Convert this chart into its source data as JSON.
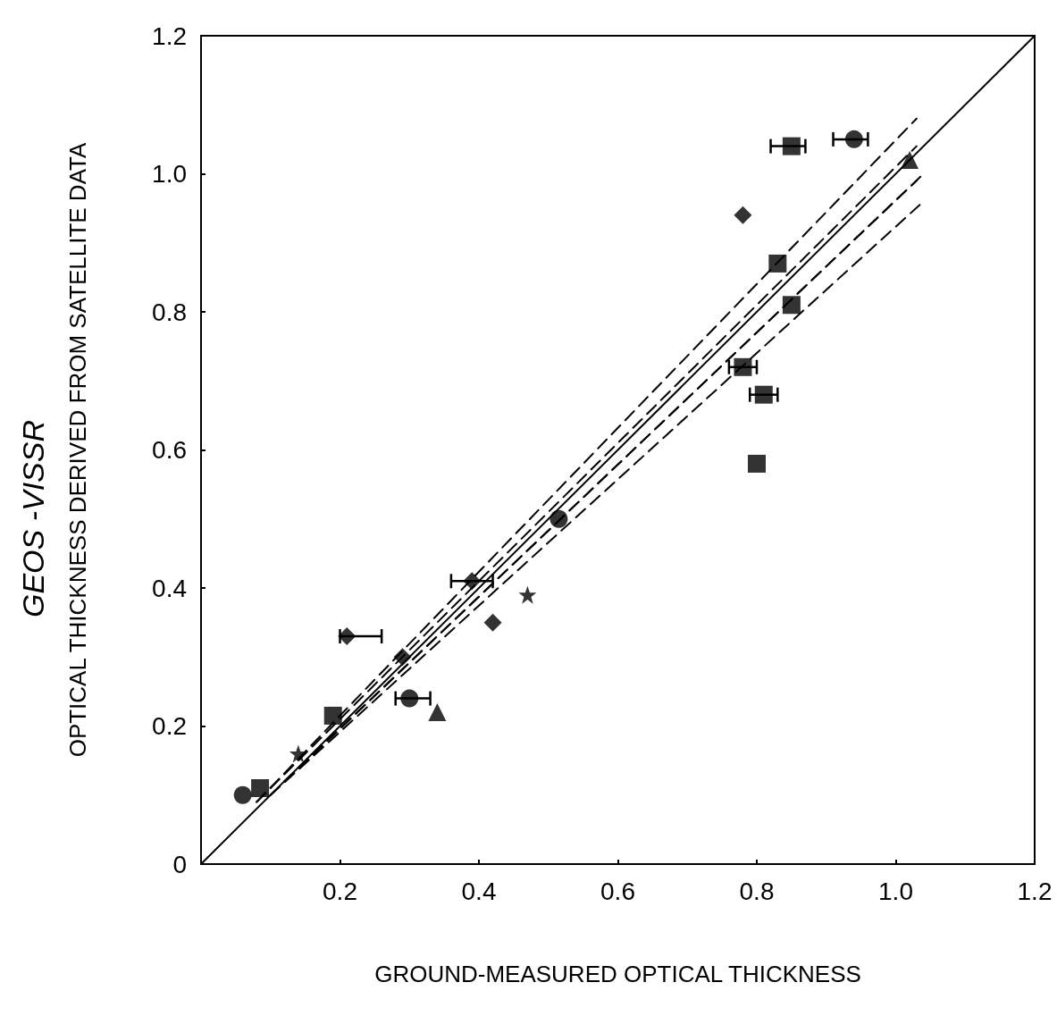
{
  "chart_data": {
    "type": "scatter",
    "xlabel": "GROUND-MEASURED OPTICAL THICKNESS",
    "ylabel": "OPTICAL THICKNESS DERIVED FROM SATELLITE DATA",
    "annotations": [
      "GEOS -VISSR"
    ],
    "xlim": [
      0,
      1.2
    ],
    "ylim": [
      0,
      1.2
    ],
    "xticks": [
      {
        "value": 0,
        "label": null
      },
      0.2,
      0.4,
      0.6,
      0.8,
      {
        "value": 1,
        "label": "1.0"
      },
      1.2
    ],
    "yticks": [
      0,
      0.2,
      0.4,
      0.6,
      0.8,
      {
        "value": 1,
        "label": "1.0"
      },
      1.2
    ],
    "grid": false,
    "series": [
      {
        "type": "line",
        "color": "#000000",
        "line_style": "solid",
        "marker": "none",
        "x": [
          0,
          1.2
        ],
        "values": [
          0,
          1.2
        ]
      },
      {
        "type": "line",
        "color": "#000000",
        "line_style": "dashed",
        "marker": "none",
        "x": [
          0.08,
          1.03
        ],
        "values": [
          0.09,
          1.08
        ]
      },
      {
        "type": "line",
        "color": "#000000",
        "line_style": "dashed",
        "marker": "none",
        "x": [
          0.08,
          1.03
        ],
        "values": [
          0.09,
          1.04
        ]
      },
      {
        "type": "line",
        "color": "#000000",
        "line_style": "dashed",
        "marker": "none",
        "x": [
          0.1,
          1.04
        ],
        "values": [
          0.1,
          1.0
        ]
      },
      {
        "type": "line",
        "color": "#000000",
        "line_style": "dashed",
        "marker": "none",
        "x": [
          0.1,
          1.04
        ],
        "values": [
          0.1,
          0.96
        ]
      },
      {
        "type": "line",
        "color": "#000000",
        "line_style": "dashed",
        "marker": "none",
        "x": [
          0.12,
          1.03
        ],
        "values": [
          0.12,
          0.99
        ]
      },
      {
        "color": "#000000",
        "marker": "circle",
        "x": [
          0.06,
          0.515
        ],
        "values": [
          0.1,
          0.5
        ]
      },
      {
        "color": "#000000",
        "marker": "square",
        "x": [
          0.085,
          0.19,
          0.78,
          0.81,
          0.8,
          0.85,
          0.83,
          0.85
        ],
        "values": [
          0.11,
          0.215,
          0.72,
          0.68,
          0.58,
          0.81,
          0.87,
          1.04
        ],
        "xerrors": [
          null,
          null,
          [
            0.76,
            0.8
          ],
          [
            0.79,
            0.83
          ],
          null,
          null,
          null,
          [
            0.82,
            0.87
          ]
        ]
      },
      {
        "color": "#000000",
        "marker": "star",
        "x": [
          0.14,
          0.47
        ],
        "values": [
          0.16,
          0.39
        ]
      },
      {
        "color": "#000000",
        "marker": "triangle",
        "x": [
          0.34,
          1.02
        ],
        "values": [
          0.22,
          1.02
        ]
      },
      {
        "color": "#000000",
        "marker": "circle",
        "x": [
          0.3,
          0.94
        ],
        "values": [
          0.24,
          1.05
        ],
        "xerrors": [
          [
            0.28,
            0.33
          ],
          [
            0.91,
            0.96
          ]
        ]
      },
      {
        "color": "#000000",
        "marker": "diamond",
        "x": [
          0.21,
          0.29,
          0.39,
          0.42,
          0.78
        ],
        "values": [
          0.33,
          0.3,
          0.41,
          0.35,
          0.94
        ],
        "xerrors": [
          [
            0.2,
            0.26
          ],
          null,
          [
            0.36,
            0.42
          ],
          null,
          null
        ]
      }
    ]
  }
}
